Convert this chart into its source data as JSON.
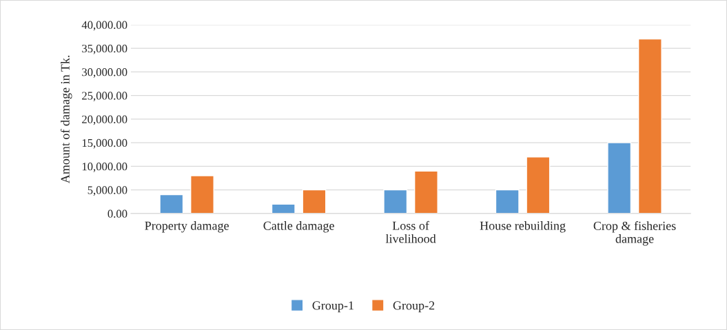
{
  "chart_data": {
    "type": "bar",
    "ylabel": "Amount of damage in Tk.",
    "categories": [
      "Property damage",
      "Cattle damage",
      "Loss of\nlivelihood",
      "House rebuilding",
      "Crop & fisheries\ndamage"
    ],
    "series": [
      {
        "name": "Group-1",
        "color": "#5b9bd5",
        "values": [
          4000,
          2000,
          5000,
          5000,
          15000
        ]
      },
      {
        "name": "Group-2",
        "color": "#ed7d31",
        "values": [
          8000,
          5000,
          9000,
          12000,
          37000
        ]
      }
    ],
    "ylim": [
      0,
      40000
    ],
    "yticks": [
      {
        "value": 0,
        "label": "0.00"
      },
      {
        "value": 5000,
        "label": "5,000.00"
      },
      {
        "value": 10000,
        "label": "10,000.00"
      },
      {
        "value": 15000,
        "label": "15,000.00"
      },
      {
        "value": 20000,
        "label": "20,000.00"
      },
      {
        "value": 25000,
        "label": "25,000.00"
      },
      {
        "value": 30000,
        "label": "30,000.00"
      },
      {
        "value": 35000,
        "label": "35,000.00"
      },
      {
        "value": 40000,
        "label": "40,000.00"
      }
    ],
    "grid": "y",
    "legend": "bottom"
  }
}
